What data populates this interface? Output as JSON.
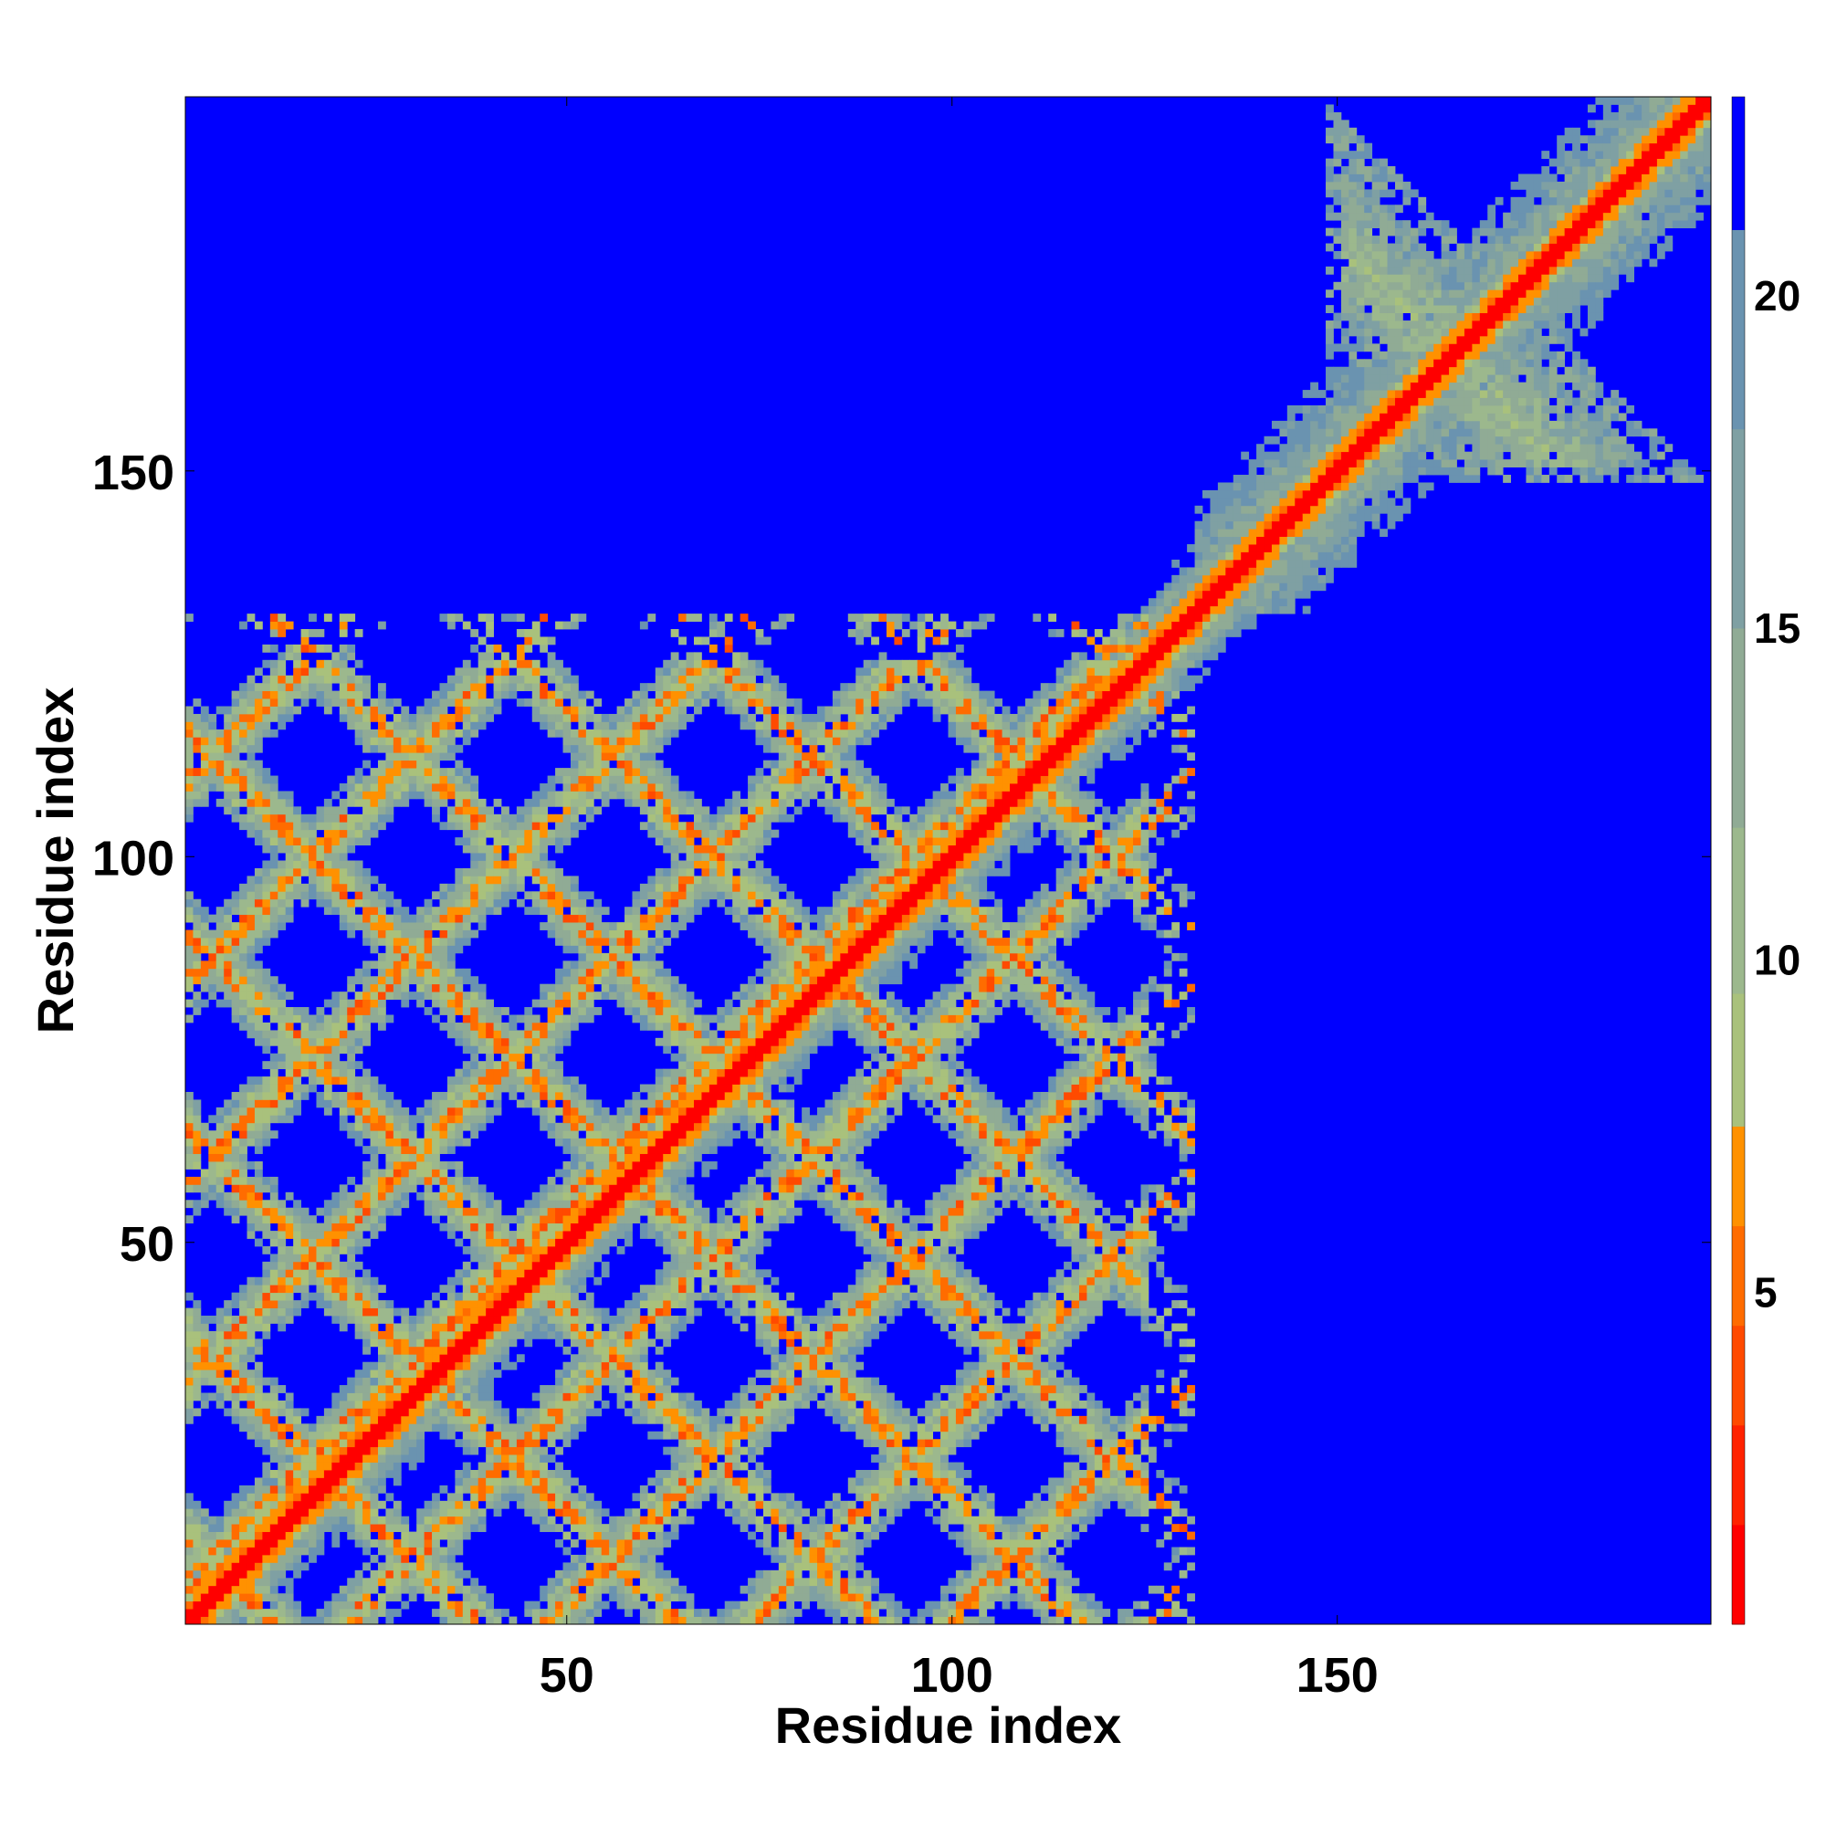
{
  "chart_data": {
    "type": "heatmap",
    "title": "",
    "xlabel": "Residue index",
    "ylabel": "Residue index",
    "xlim": [
      1,
      198
    ],
    "ylim": [
      1,
      198
    ],
    "x_ticks": [
      50,
      100,
      150
    ],
    "y_ticks": [
      50,
      100,
      150
    ],
    "colorbar_ticks": [
      5,
      10,
      15,
      20
    ],
    "colorbar_range": [
      0,
      23
    ],
    "colorscale": [
      {
        "from": 0,
        "to": 1.5,
        "color": "#ff0000"
      },
      {
        "from": 1.5,
        "to": 3,
        "color": "#ff2200"
      },
      {
        "from": 3,
        "to": 4.5,
        "color": "#ff4a00"
      },
      {
        "from": 4.5,
        "to": 6,
        "color": "#ff6c00"
      },
      {
        "from": 6,
        "to": 7.5,
        "color": "#ff9100"
      },
      {
        "from": 7.5,
        "to": 9.5,
        "color": "#a9c17c"
      },
      {
        "from": 9.5,
        "to": 12,
        "color": "#9cb88d"
      },
      {
        "from": 12,
        "to": 15,
        "color": "#90ab95"
      },
      {
        "from": 15,
        "to": 18,
        "color": "#7fa0a3"
      },
      {
        "from": 18,
        "to": 21,
        "color": "#6a93b0"
      },
      {
        "from": 21,
        "to": 23,
        "color": "#0000ff"
      }
    ],
    "background_value": 23,
    "structure_description": {
      "diagonal_band": {
        "from": 1,
        "to": 198
      },
      "domain_1_range": [
        1,
        131
      ],
      "domain_2_range": [
        132,
        198
      ],
      "antidiagonal_blocks": [
        {
          "x": [
            150,
            198
          ],
          "y": [
            148,
            198
          ]
        },
        {
          "x": [
            1,
            131
          ],
          "y": [
            1,
            131
          ]
        }
      ]
    }
  }
}
